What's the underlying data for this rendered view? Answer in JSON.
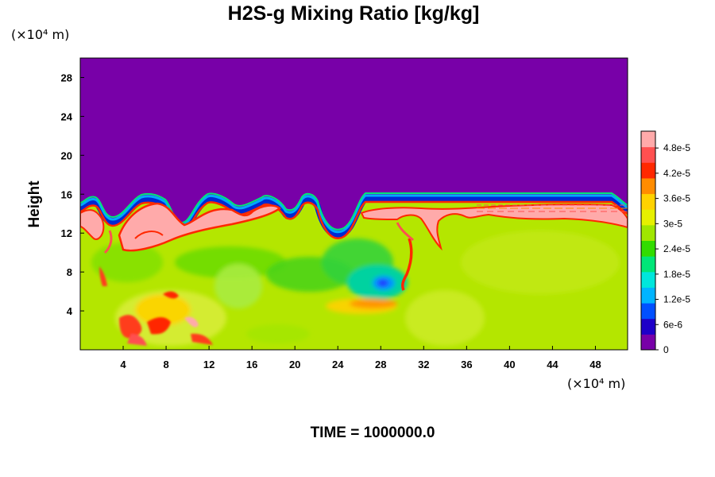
{
  "chart_data": {
    "type": "heatmap",
    "title": "H2S-g Mixing Ratio [kg/kg]",
    "ylabel": "Height",
    "y_unit": "(×10⁴ m)",
    "x_unit": "(×10⁴ m)",
    "x_ticks": [
      "4",
      "8",
      "12",
      "16",
      "20",
      "24",
      "28",
      "32",
      "36",
      "40",
      "44",
      "48"
    ],
    "y_ticks": [
      "4",
      "8",
      "12",
      "16",
      "20",
      "24",
      "28"
    ],
    "xlim": [
      0,
      51
    ],
    "ylim": [
      0,
      30
    ],
    "colorbar": {
      "range": [
        0,
        5.2e-05
      ],
      "labels": [
        "0",
        "6e-6",
        "1.2e-5",
        "1.8e-5",
        "2.4e-5",
        "3e-5",
        "3.6e-5",
        "4.2e-5",
        "4.8e-5"
      ],
      "colors": [
        "#7800a8",
        "#1e00c8",
        "#0050ff",
        "#00b4ff",
        "#00e6dc",
        "#00e678",
        "#32dc00",
        "#a0e600",
        "#e6f000",
        "#ffd200",
        "#ff8c00",
        "#ff2800",
        "#ff5050",
        "#ffaaaa"
      ]
    },
    "annotation": "TIME = 1000000.0"
  }
}
